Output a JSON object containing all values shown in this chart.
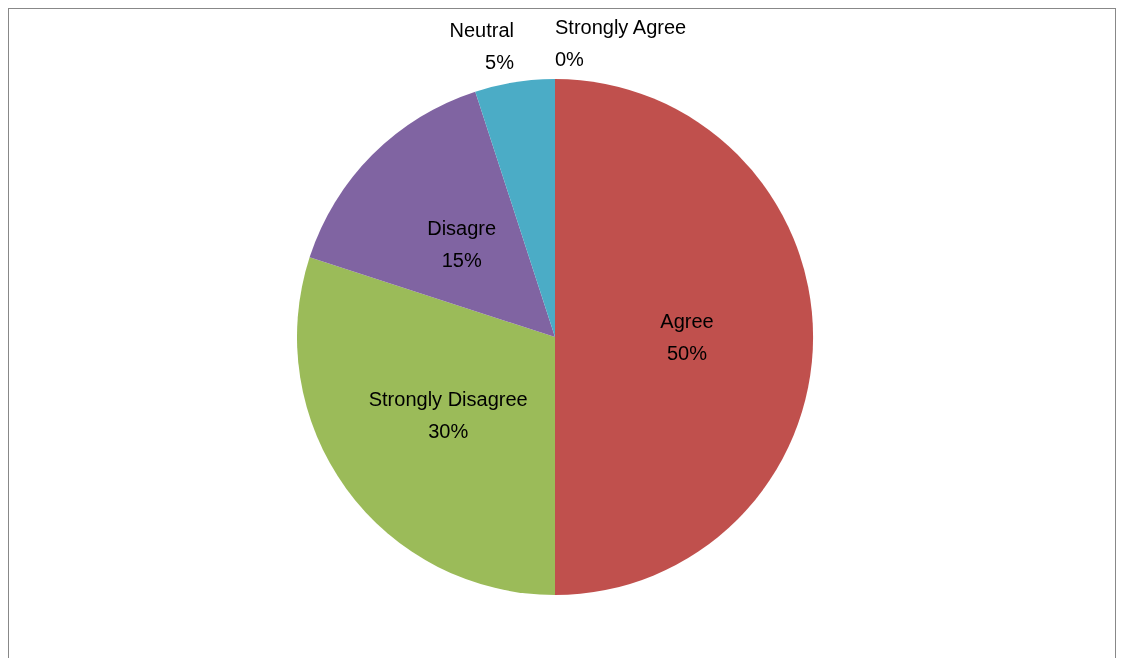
{
  "chart_data": {
    "type": "pie",
    "categories": [
      "Strongly Agree",
      "Agree",
      "Strongly Disagree",
      "Disagre",
      "Neutral"
    ],
    "values": [
      0,
      50,
      30,
      15,
      5
    ],
    "value_labels": [
      "0%",
      "50%",
      "30%",
      "15%",
      "5%"
    ],
    "colors": [
      "#4f81bd",
      "#c0504d",
      "#9bbb59",
      "#8064a2",
      "#4bacc6"
    ],
    "legend": false
  }
}
